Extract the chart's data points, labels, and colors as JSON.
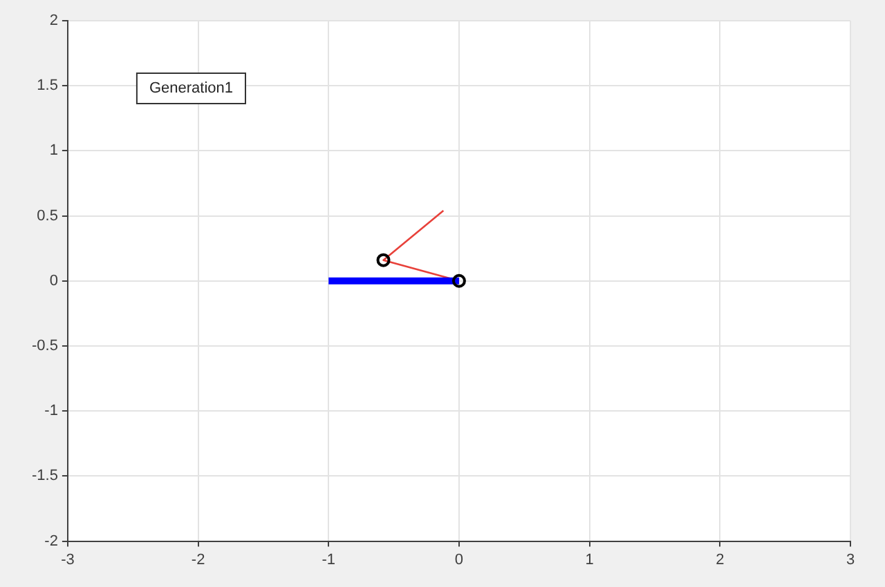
{
  "chart_data": {
    "type": "line",
    "xlim": [
      -3,
      3
    ],
    "ylim": [
      -2,
      2
    ],
    "xticks": [
      -3,
      -2,
      -1,
      0,
      1,
      2,
      3
    ],
    "yticks": [
      -2,
      -1.5,
      -1,
      -0.5,
      0,
      0.5,
      1,
      1.5,
      2
    ],
    "grid": true,
    "legend": false,
    "annotations": [
      "Generation1"
    ],
    "series": [
      {
        "color": "#0000ff",
        "x": [
          -1,
          0
        ],
        "values": [
          0,
          0
        ],
        "marker": "none"
      },
      {
        "color": "#e8413a",
        "x": [
          0,
          -0.58,
          -0.12
        ],
        "values": [
          0,
          0.16,
          0.54
        ],
        "marker": "none"
      },
      {
        "type": "scatter",
        "color": "#000000",
        "x": [
          0,
          -0.58
        ],
        "values": [
          0,
          0.16
        ],
        "marker": "circle"
      }
    ]
  }
}
